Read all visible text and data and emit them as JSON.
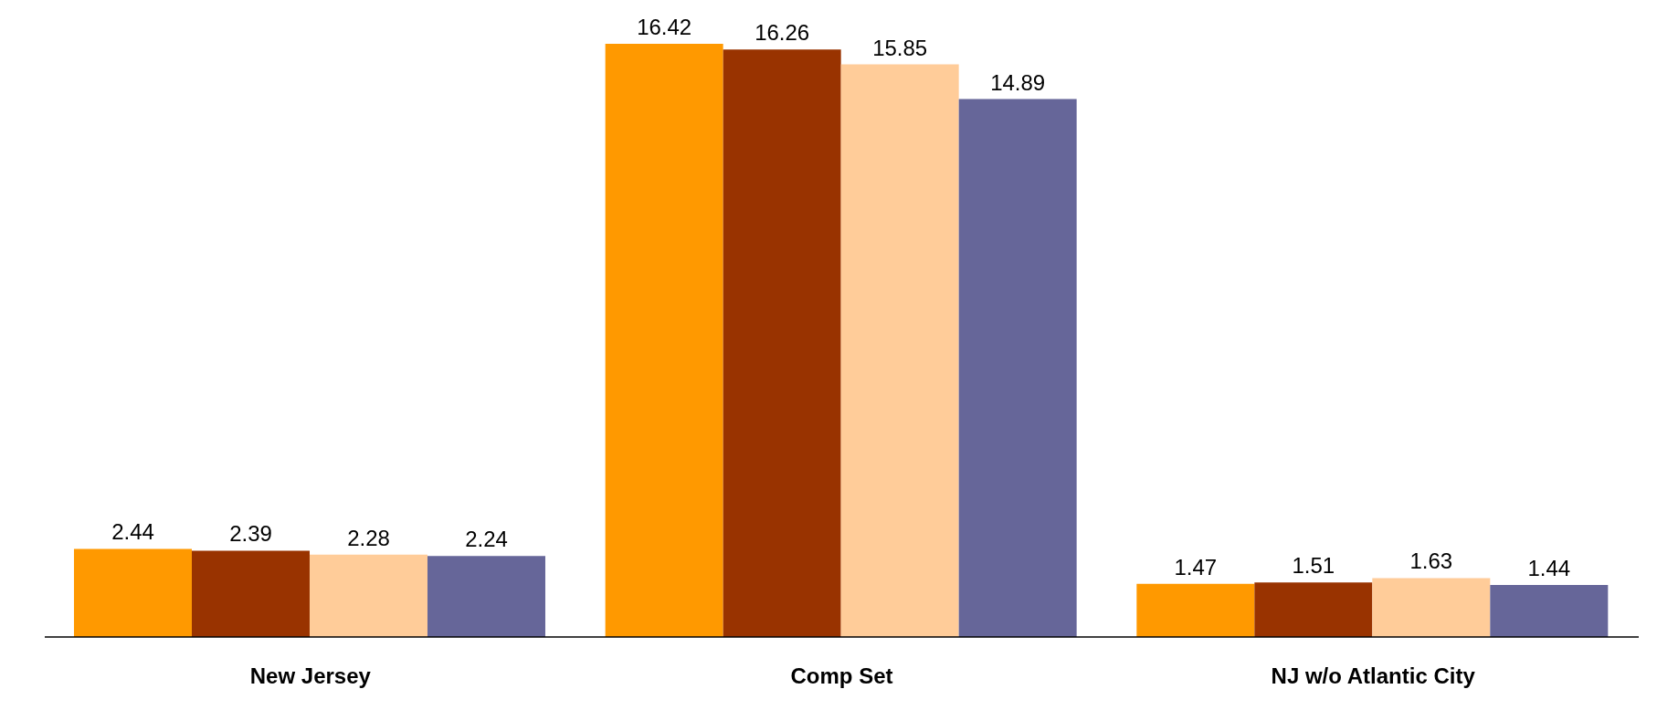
{
  "chart_data": {
    "type": "bar",
    "categories": [
      "New Jersey",
      "Comp Set",
      "NJ w/o Atlantic City"
    ],
    "series": [
      {
        "color": "#ff9900",
        "values": [
          2.44,
          16.42,
          1.47
        ]
      },
      {
        "color": "#993300",
        "values": [
          2.39,
          16.26,
          1.51
        ]
      },
      {
        "color": "#ffcc99",
        "values": [
          2.28,
          15.85,
          1.63
        ]
      },
      {
        "color": "#666699",
        "values": [
          2.24,
          14.89,
          1.44
        ]
      }
    ],
    "data_labels": true,
    "grid": false,
    "legend": false
  }
}
